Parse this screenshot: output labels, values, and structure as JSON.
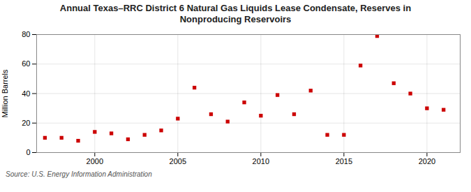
{
  "chart_data": {
    "type": "scatter",
    "title": "Annual Texas–RRC District 6 Natural Gas Liquids Lease Condensate, Reserves in\nNonproducing Reservoirs",
    "ylabel": "Million Barrels",
    "source": "Source: U.S. Energy Information Administration",
    "x": [
      1997,
      1998,
      1999,
      2000,
      2001,
      2002,
      2003,
      2004,
      2005,
      2006,
      2007,
      2008,
      2009,
      2010,
      2011,
      2012,
      2013,
      2014,
      2015,
      2016,
      2017,
      2018,
      2019,
      2020,
      2021
    ],
    "values": [
      10,
      10,
      8,
      14,
      13,
      9,
      12,
      15,
      23,
      44,
      26,
      21,
      34,
      25,
      39,
      26,
      42,
      12,
      12,
      59,
      79,
      47,
      40,
      30,
      29
    ],
    "color": "#cc0000",
    "marker": "square",
    "xlim": [
      1996.5,
      2022
    ],
    "xticks": [
      2000,
      2005,
      2010,
      2015,
      2020
    ],
    "ylim": [
      0,
      80
    ],
    "yticks": [
      0,
      20,
      40,
      60,
      80
    ],
    "grid": true
  }
}
